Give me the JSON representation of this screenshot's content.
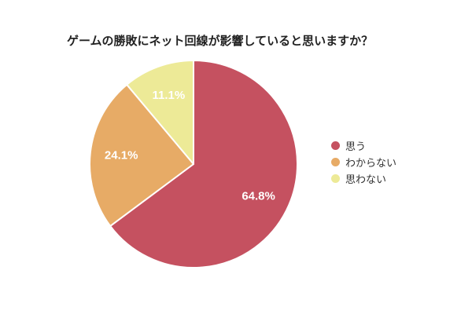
{
  "title": "ゲームの勝敗にネット回線が影響していると思いますか？",
  "chart_data": {
    "type": "pie",
    "title": "ゲームの勝敗にネット回線が影響していると思いますか？",
    "categories": [
      "思う",
      "わからない",
      "思わない"
    ],
    "values": [
      64.8,
      24.1,
      11.1
    ],
    "slice_labels": [
      "64.8%",
      "24.1%",
      "11.1%"
    ],
    "colors": [
      "#c55160",
      "#e7ab66",
      "#edea97"
    ],
    "start_angle": "top",
    "direction": "clockwise",
    "slice_border_color": "#ffffff",
    "slice_label_color": "#ffffff",
    "legend_position": "right",
    "background": "#ffffff"
  },
  "legend": {
    "items": [
      {
        "label": "思う",
        "color": "#c55160"
      },
      {
        "label": "わからない",
        "color": "#e7ab66"
      },
      {
        "label": "思わない",
        "color": "#edea97"
      }
    ]
  }
}
